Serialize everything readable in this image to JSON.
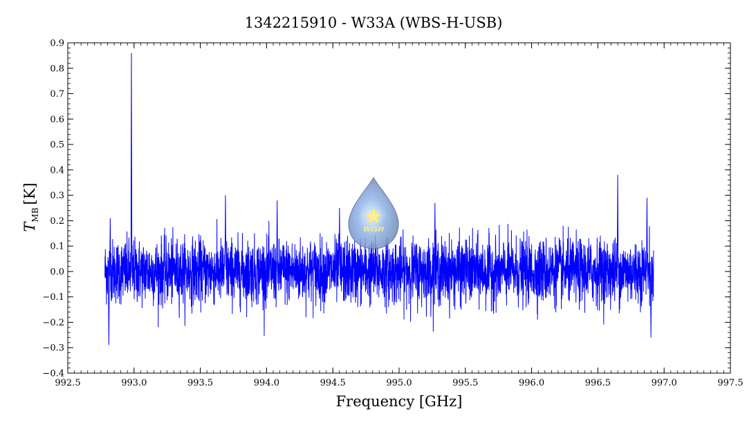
{
  "chart_data": {
    "type": "line",
    "title": "1342215910 - W33A (WBS-H-USB)",
    "xlabel": "Frequency [GHz]",
    "ylabel_main": "T",
    "ylabel_sub": "MB",
    "ylabel_unit": "[K]",
    "xlim": [
      992.5,
      997.5
    ],
    "ylim": [
      -0.4,
      0.9
    ],
    "x_ticks": [
      "992.5",
      "993.0",
      "993.5",
      "994.0",
      "994.5",
      "995.0",
      "995.5",
      "996.0",
      "996.5",
      "997.0",
      "997.5"
    ],
    "y_ticks": [
      "-0.4",
      "-0.3",
      "-0.2",
      "-0.1",
      "0.0",
      "0.1",
      "0.2",
      "0.3",
      "0.4",
      "0.5",
      "0.6",
      "0.7",
      "0.8",
      "0.9"
    ],
    "grid": false,
    "series": [
      {
        "color": "#0000ff",
        "x_range": [
          992.78,
          996.92
        ],
        "noise_sigma": 0.07,
        "features": [
          {
            "x": 992.81,
            "y": -0.29
          },
          {
            "x": 992.82,
            "y": 0.21
          },
          {
            "x": 992.98,
            "y": 0.86
          },
          {
            "x": 993.69,
            "y": 0.3
          },
          {
            "x": 994.08,
            "y": 0.28
          },
          {
            "x": 994.55,
            "y": 0.25
          },
          {
            "x": 995.27,
            "y": 0.27
          },
          {
            "x": 996.65,
            "y": 0.38
          },
          {
            "x": 996.87,
            "y": 0.29
          },
          {
            "x": 996.9,
            "y": -0.26
          }
        ]
      }
    ],
    "logo": {
      "text": "WISH"
    }
  }
}
